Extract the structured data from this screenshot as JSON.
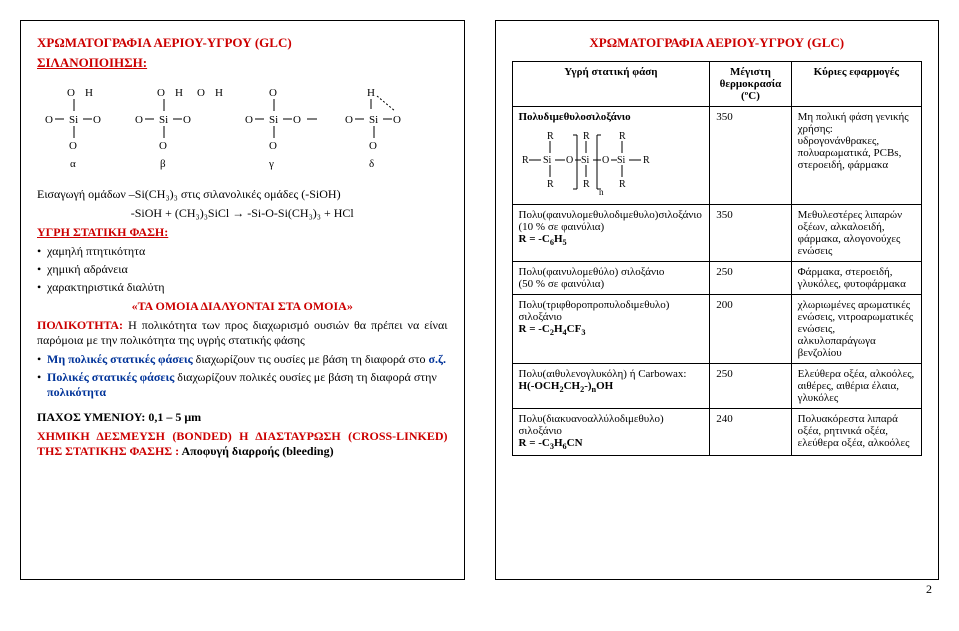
{
  "left": {
    "title": "ΧΡΩΜΑΤΟΓΡΑΦΙΑ ΑΕΡΙΟΥ-ΥΓΡΟΥ (GLC)",
    "subtitle": "ΣΙΛΑΝΟΠΟΙΗΣΗ:",
    "intro": "Εισαγωγή ομάδων –Si(CH₃)₃ στις σιλανολικές ομάδες (-SiOH)",
    "rxn": "-SiOH + (CH₃)₃SiCl → -Si-O-Si(CH₃)₃ + HCl",
    "phase_heading": "ΥΓΡΗ ΣΤΑΤΙΚΗ ΦΑΣΗ:",
    "phase_items": [
      "χαμηλή πτητικότητα",
      "χημική αδράνεια",
      "χαρακτηριστικά διαλύτη"
    ],
    "like_heading": "«ΤΑ ΟΜΟΙΑ ΔΙΑΛΥΟΝΤΑΙ ΣΤΑ ΟΜΟΙΑ»",
    "polar_pre": "ΠΟΛΙΚΟΤΗΤΑ:",
    "polar_rest": " Η πολικότητα των προς διαχωρισμό ουσιών θα πρέπει να είναι παρόμοια με την πολικότητα της υγρής στατικής φάσης",
    "nonpolar_pre": "Μη πολικές στατικές φάσεις",
    "nonpolar_rest": " διαχωρίζουν τις ουσίες με βάση τη διαφορά στο ",
    "nonpolar_sz": "σ.ζ.",
    "polarphases_pre": "Πολικές στατικές φάσεις",
    "polarphases_rest": " διαχωρίζουν πολικές ουσίες με βάση τη διαφορά στην ",
    "polarphases_pol": "πολικότητα",
    "thickness": "ΠΑΧΟΣ ΥΜΕΝΙΟΥ: 0,1 – 5 μm",
    "bonded": "ΧΗΜΙΚΗ ΔΕΣΜΕΥΣΗ (BONDED) Η ΔΙΑΣΤΑΥΡΩΣΗ (CROSS-LINKED) ΤΗΣ ΣΤΑΤΙΚΗΣ ΦΑΣΗΣ :",
    "bleeding": " Αποφυγή διαρροής (bleeding)",
    "greek_labels": [
      "α",
      "β",
      "γ",
      "δ"
    ]
  },
  "right": {
    "title": "ΧΡΩΜΑΤΟΓΡΑΦΙΑ ΑΕΡΙΟΥ-ΥΓΡΟΥ (GLC)",
    "headers": [
      "Υγρή στατική φάση",
      "Μέγιστη θερμοκρασία (ºC)",
      "Κύριες εφαρμογές"
    ],
    "rows": [
      {
        "name": "Πολυδιμεθυλοσιλοξάνιο",
        "temp": "350",
        "app": "Μη πολική φάση γενικής χρήσης: υδρογονάνθρακες, πολυαρωματικά, PCBs, στεροειδή, φάρμακα",
        "svg": true
      },
      {
        "name_html": "Πολυ(φαινυλομεθυλοδιμεθυλο)σιλοξάνιο<br>(10 % σε φαινύλια)<br><b>R = -C<sub>6</sub>H<sub>5</sub></b>",
        "temp": "350",
        "app": "Μεθυλεστέρες λιπαρών οξέων, αλκαλοειδή, φάρμακα, αλογονούχες ενώσεις"
      },
      {
        "name_html": "Πολυ(φαινυλομεθύλο) σιλοξάνιο<br>(50 % σε φαινύλια)",
        "temp": "250",
        "app": "Φάρμακα, στεροειδή, γλυκόλες, φυτοφάρμακα"
      },
      {
        "name_html": "Πολυ(τριφθοροπροπυλοδιμεθυλο) σιλοξάνιο<br><b>R = -C<sub>2</sub>H<sub>4</sub>CF<sub>3</sub></b>",
        "temp": "200",
        "app": "χλωριωμένες αρωματικές ενώσεις, νιτροαρωματικές ενώσεις, αλκυλοπαράγωγα βενζολίου"
      },
      {
        "name_html": "Πολυ(αιθυλενογλυκόλη) ή Carbowax:<br><b>H(-OCH<sub>2</sub>CH<sub>2</sub>-)<sub>n</sub>OH</b>",
        "temp": "250",
        "app": "Ελεύθερα οξέα, αλκοόλες, αιθέρες, αιθέρια έλαια, γλυκόλες"
      },
      {
        "name_html": "Πολυ(διακυανοαλλύλοδιμεθυλο) σιλοξάνιο<br><b>R = -C<sub>3</sub>H<sub>6</sub>CN</b>",
        "temp": "240",
        "app": "Πολυακόρεστα λιπαρά οξέα, ρητινικά οξέα, ελεύθερα οξέα, αλκοόλες"
      }
    ],
    "pagenum": "2"
  }
}
